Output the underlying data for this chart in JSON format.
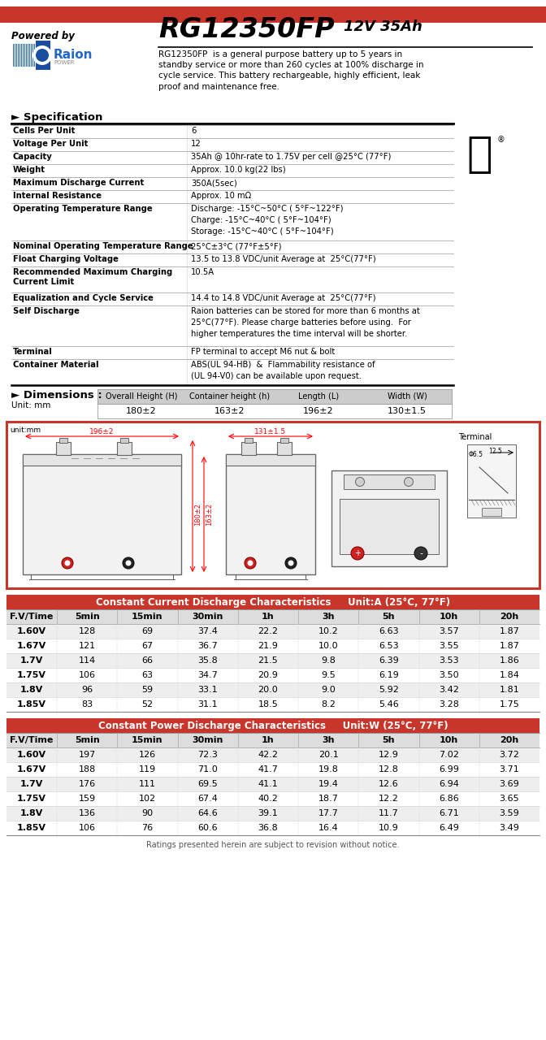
{
  "model": "RG12350FP",
  "voltage": "12V",
  "ah": "35Ah",
  "powered_by": "Powered by",
  "description": "RG12350FP  is a general purpose battery up to 5 years in\nstandby service or more than 260 cycles at 100% discharge in\ncycle service. This battery rechargeable, highly efficient, leak\nproof and maintenance free.",
  "spec_title": "► Specification",
  "specs": [
    [
      "Cells Per Unit",
      "6"
    ],
    [
      "Voltage Per Unit",
      "12"
    ],
    [
      "Capacity",
      "35Ah @ 10hr-rate to 1.75V per cell @25°C (77°F)"
    ],
    [
      "Weight",
      "Approx. 10.0 kg(22 lbs)"
    ],
    [
      "Maximum Discharge Current",
      "350A(5sec)"
    ],
    [
      "Internal Resistance",
      "Approx. 10 mΩ"
    ],
    [
      "Operating Temperature Range",
      "Discharge: -15°C~50°C ( 5°F~122°F)\nCharge: -15°C~40°C ( 5°F~104°F)\nStorage: -15°C~40°C ( 5°F~104°F)"
    ],
    [
      "Nominal Operating Temperature Range",
      "25°C±3°C (77°F±5°F)"
    ],
    [
      "Float Charging Voltage",
      "13.5 to 13.8 VDC/unit Average at  25°C(77°F)"
    ],
    [
      "Recommended Maximum Charging\nCurrent Limit",
      "10.5A"
    ],
    [
      "Equalization and Cycle Service",
      "14.4 to 14.8 VDC/unit Average at  25°C(77°F)"
    ],
    [
      "Self Discharge",
      "Raion batteries can be stored for more than 6 months at\n25°C(77°F). Please charge batteries before using.  For\nhigher temperatures the time interval will be shorter."
    ],
    [
      "Terminal",
      "FP terminal to accept M6 nut & bolt"
    ],
    [
      "Container Material",
      "ABS(UL 94-HB)  &  Flammability resistance of\n(UL 94-V0) can be available upon request."
    ]
  ],
  "spec_row_heights": [
    16,
    16,
    16,
    16,
    16,
    16,
    46,
    16,
    16,
    32,
    16,
    50,
    16,
    32
  ],
  "dim_title": "► Dimensions :",
  "dim_unit": "Unit: mm",
  "dim_headers": [
    "Overall Height (H)",
    "Container height (h)",
    "Length (L)",
    "Width (W)"
  ],
  "dim_values": [
    "180±2",
    "163±2",
    "196±2",
    "130±1.5"
  ],
  "cc_title": "Constant Current Discharge Characteristics",
  "cc_unit": "Unit:A (25°C, 77°F)",
  "cc_headers": [
    "F.V/Time",
    "5min",
    "15min",
    "30min",
    "1h",
    "3h",
    "5h",
    "10h",
    "20h"
  ],
  "cc_rows": [
    [
      "1.60V",
      "128",
      "69",
      "37.4",
      "22.2",
      "10.2",
      "6.63",
      "3.57",
      "1.87"
    ],
    [
      "1.67V",
      "121",
      "67",
      "36.7",
      "21.9",
      "10.0",
      "6.53",
      "3.55",
      "1.87"
    ],
    [
      "1.7V",
      "114",
      "66",
      "35.8",
      "21.5",
      "9.8",
      "6.39",
      "3.53",
      "1.86"
    ],
    [
      "1.75V",
      "106",
      "63",
      "34.7",
      "20.9",
      "9.5",
      "6.19",
      "3.50",
      "1.84"
    ],
    [
      "1.8V",
      "96",
      "59",
      "33.1",
      "20.0",
      "9.0",
      "5.92",
      "3.42",
      "1.81"
    ],
    [
      "1.85V",
      "83",
      "52",
      "31.1",
      "18.5",
      "8.2",
      "5.46",
      "3.28",
      "1.75"
    ]
  ],
  "cp_title": "Constant Power Discharge Characteristics",
  "cp_unit": "Unit:W (25°C, 77°F)",
  "cp_headers": [
    "F.V/Time",
    "5min",
    "15min",
    "30min",
    "1h",
    "3h",
    "5h",
    "10h",
    "20h"
  ],
  "cp_rows": [
    [
      "1.60V",
      "197",
      "126",
      "72.3",
      "42.2",
      "20.1",
      "12.9",
      "7.02",
      "3.72"
    ],
    [
      "1.67V",
      "188",
      "119",
      "71.0",
      "41.7",
      "19.8",
      "12.8",
      "6.99",
      "3.71"
    ],
    [
      "1.7V",
      "176",
      "111",
      "69.5",
      "41.1",
      "19.4",
      "12.6",
      "6.94",
      "3.69"
    ],
    [
      "1.75V",
      "159",
      "102",
      "67.4",
      "40.2",
      "18.7",
      "12.2",
      "6.86",
      "3.65"
    ],
    [
      "1.8V",
      "136",
      "90",
      "64.6",
      "39.1",
      "17.7",
      "11.7",
      "6.71",
      "3.59"
    ],
    [
      "1.85V",
      "106",
      "76",
      "60.6",
      "36.8",
      "16.4",
      "10.9",
      "6.49",
      "3.49"
    ]
  ],
  "footer": "Ratings presented herein are subject to revision without notice.",
  "red_bar_color": "#C8352A",
  "table_red_color": "#C8352A",
  "dim_header_bg": "#CCCCCC",
  "table_row_alt": "#EEEEEE"
}
